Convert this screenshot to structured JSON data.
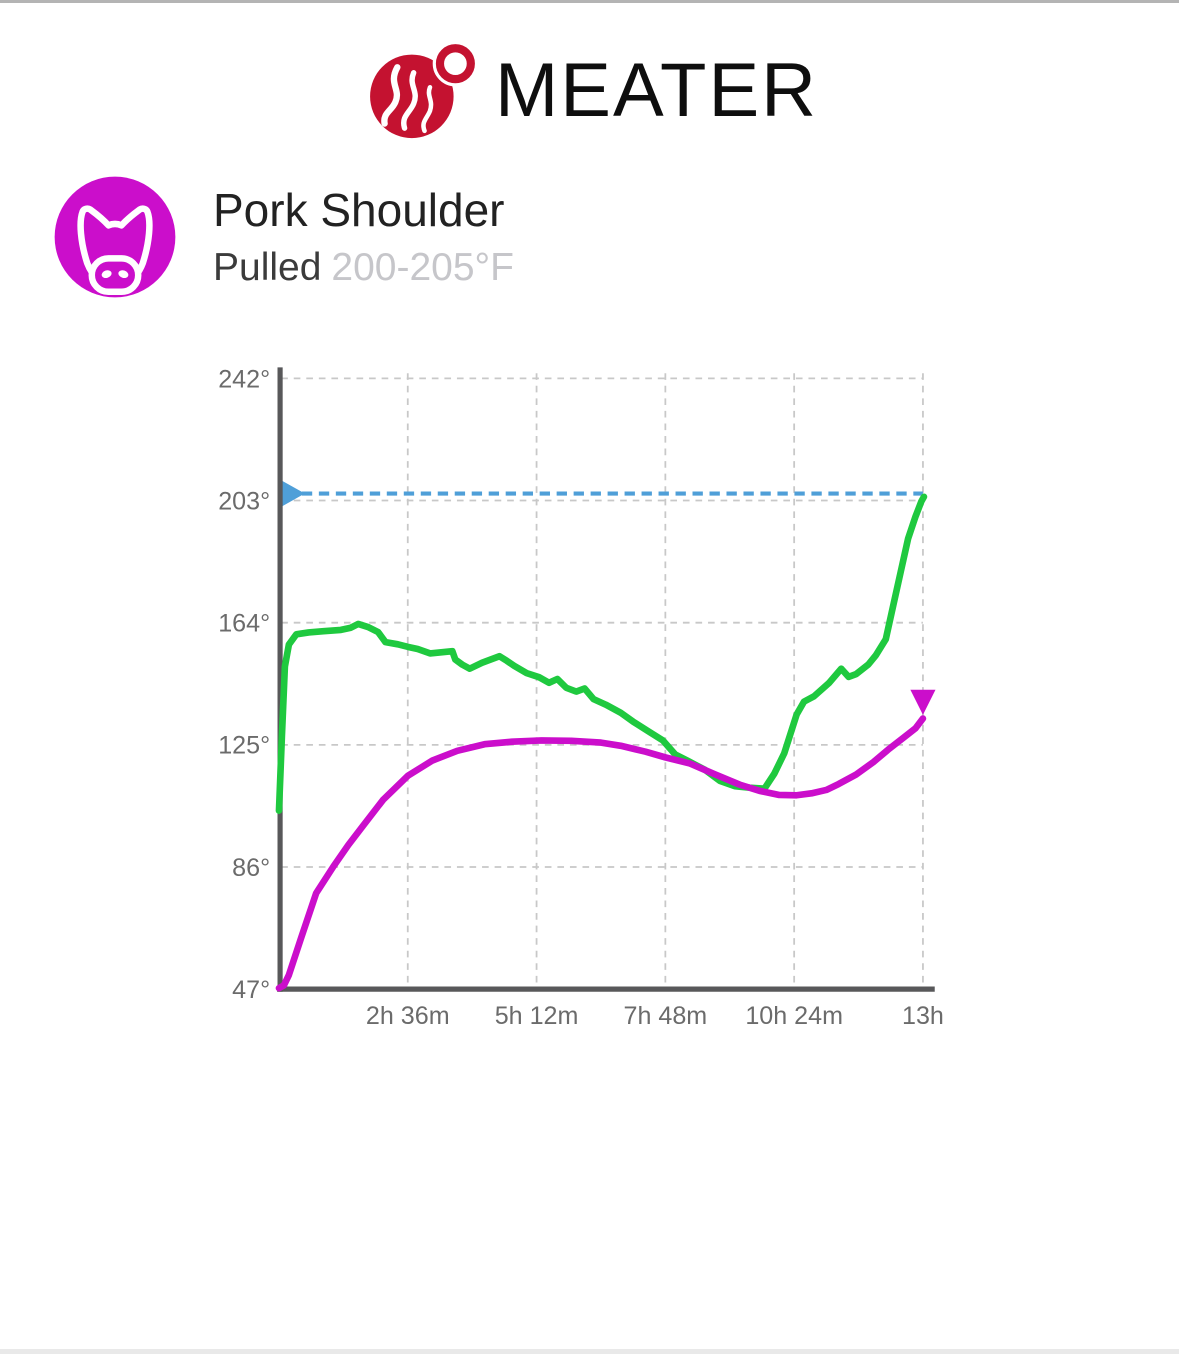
{
  "page": {
    "brand": "MEATER"
  },
  "food": {
    "name": "Pork Shoulder",
    "prep": "Pulled",
    "target_range": "200-205°F"
  },
  "colors": {
    "brand_red": "#c41230",
    "food_badge_magenta": "#cb0ecb",
    "internal_line": "#cb0ecb",
    "ambient_line": "#1fc93f",
    "target_line": "#4f9fd8",
    "axis": "#58585a",
    "grid": "#c8c8c8",
    "tick_label": "#6b6b6b"
  },
  "chart_data": {
    "type": "line",
    "title": "",
    "xlabel": "",
    "ylabel": "",
    "grid": true,
    "ylim": [
      47,
      242
    ],
    "xlim_hours": [
      0,
      13.25
    ],
    "ytick_values": [
      242,
      203,
      164,
      125,
      86,
      47
    ],
    "ytick_labels": [
      "242°",
      "203°",
      "164°",
      "125°",
      "86°",
      "47°"
    ],
    "xtick_hours": [
      2.6,
      5.2,
      7.8,
      10.4,
      13
    ],
    "xtick_labels": [
      "2h 36m",
      "5h 12m",
      "7h 48m",
      "10h 24m",
      "13h"
    ],
    "target_line": {
      "name": "target-temperature",
      "value_f": 205,
      "style": "dashed",
      "left_marker": "right-triangle"
    },
    "series": [
      {
        "name": "ambient-temperature",
        "color": "#1fc93f",
        "points_h_f": [
          [
            0,
            104
          ],
          [
            0.06,
            128
          ],
          [
            0.12,
            150
          ],
          [
            0.2,
            157
          ],
          [
            0.35,
            160.3
          ],
          [
            0.6,
            160.9
          ],
          [
            0.9,
            161.3
          ],
          [
            1.25,
            161.7
          ],
          [
            1.45,
            162.4
          ],
          [
            1.6,
            163.6
          ],
          [
            1.8,
            162.6
          ],
          [
            2.0,
            161.0
          ],
          [
            2.15,
            157.8
          ],
          [
            2.4,
            157.1
          ],
          [
            2.6,
            156.3
          ],
          [
            2.8,
            155.6
          ],
          [
            3.05,
            154.2
          ],
          [
            3.3,
            154.6
          ],
          [
            3.5,
            154.9
          ],
          [
            3.56,
            152.2
          ],
          [
            3.7,
            150.6
          ],
          [
            3.85,
            149.3
          ],
          [
            4.1,
            151.2
          ],
          [
            4.45,
            153.3
          ],
          [
            4.6,
            151.8
          ],
          [
            4.75,
            150.2
          ],
          [
            5.0,
            147.9
          ],
          [
            5.25,
            146.6
          ],
          [
            5.45,
            144.8
          ],
          [
            5.62,
            146.0
          ],
          [
            5.8,
            143.2
          ],
          [
            6.0,
            142.0
          ],
          [
            6.17,
            143.0
          ],
          [
            6.35,
            139.6
          ],
          [
            6.6,
            137.8
          ],
          [
            6.9,
            135.2
          ],
          [
            7.15,
            132.4
          ],
          [
            7.45,
            129.4
          ],
          [
            7.75,
            126.4
          ],
          [
            8.0,
            121.9
          ],
          [
            8.25,
            119.9
          ],
          [
            8.6,
            117.0
          ],
          [
            8.9,
            113.5
          ],
          [
            9.2,
            111.8
          ],
          [
            9.5,
            111.3
          ],
          [
            9.8,
            111.0
          ],
          [
            10.0,
            115.8
          ],
          [
            10.2,
            122.3
          ],
          [
            10.45,
            134.7
          ],
          [
            10.6,
            138.8
          ],
          [
            10.8,
            140.5
          ],
          [
            11.1,
            144.7
          ],
          [
            11.35,
            149.3
          ],
          [
            11.5,
            146.7
          ],
          [
            11.65,
            147.6
          ],
          [
            11.9,
            150.7
          ],
          [
            12.05,
            153.6
          ],
          [
            12.25,
            158.7
          ],
          [
            12.4,
            169.5
          ],
          [
            12.55,
            180.2
          ],
          [
            12.7,
            190.8
          ],
          [
            12.85,
            197.9
          ],
          [
            12.97,
            202.8
          ],
          [
            13.02,
            204.2
          ]
        ]
      },
      {
        "name": "internal-temperature",
        "color": "#cb0ecb",
        "end_marker": "down-triangle",
        "points_h_f": [
          [
            0,
            47.3
          ],
          [
            0.1,
            48.2
          ],
          [
            0.2,
            51.5
          ],
          [
            0.45,
            63.5
          ],
          [
            0.75,
            77.6
          ],
          [
            1.1,
            86.2
          ],
          [
            1.4,
            93.0
          ],
          [
            1.7,
            99.2
          ],
          [
            2.1,
            107.4
          ],
          [
            2.6,
            115.1
          ],
          [
            3.1,
            120.0
          ],
          [
            3.6,
            123.1
          ],
          [
            4.15,
            125.2
          ],
          [
            4.7,
            126.0
          ],
          [
            5.3,
            126.4
          ],
          [
            5.9,
            126.3
          ],
          [
            6.5,
            125.7
          ],
          [
            6.9,
            124.7
          ],
          [
            7.4,
            122.8
          ],
          [
            7.8,
            121.0
          ],
          [
            8.3,
            119.0
          ],
          [
            8.8,
            115.6
          ],
          [
            9.3,
            112.3
          ],
          [
            9.7,
            110.3
          ],
          [
            10.1,
            109.0
          ],
          [
            10.45,
            108.9
          ],
          [
            10.75,
            109.5
          ],
          [
            11.05,
            110.6
          ],
          [
            11.3,
            112.5
          ],
          [
            11.65,
            115.5
          ],
          [
            12.0,
            119.5
          ],
          [
            12.3,
            123.5
          ],
          [
            12.6,
            127.2
          ],
          [
            12.85,
            130.3
          ],
          [
            13.0,
            133.4
          ]
        ]
      }
    ]
  }
}
